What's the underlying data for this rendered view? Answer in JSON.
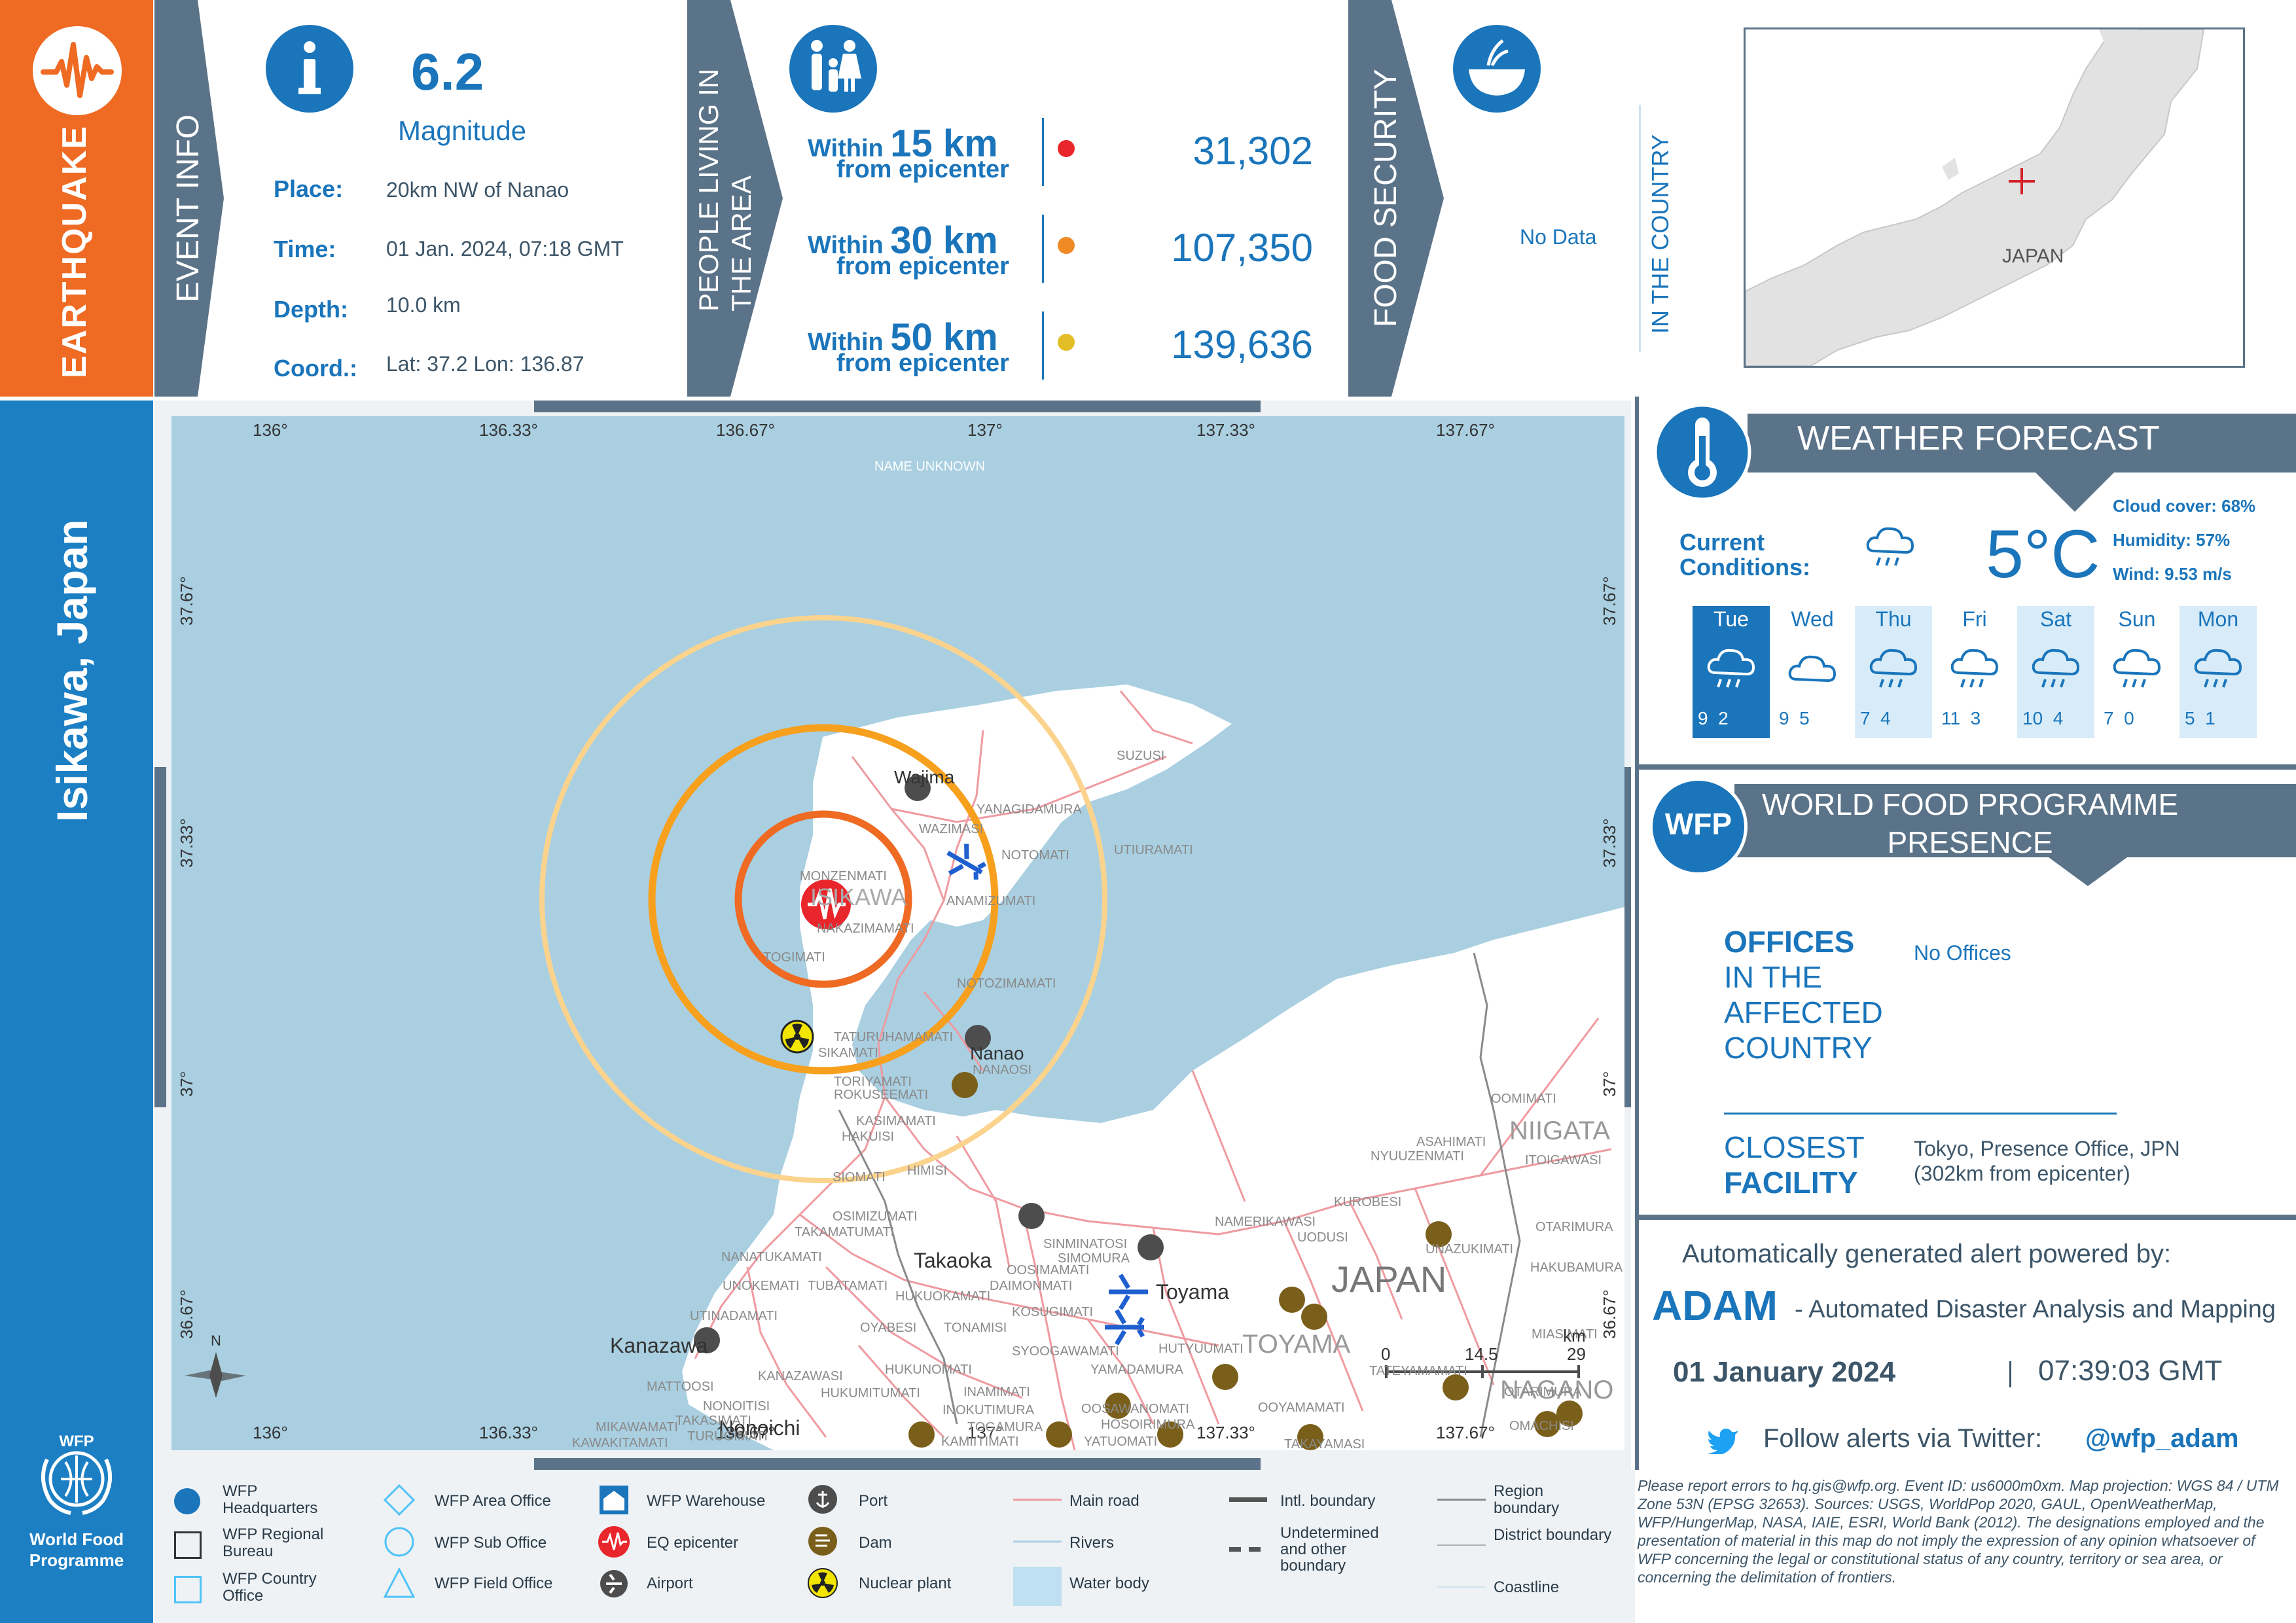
{
  "sidebar": {
    "hazard": "EARTHQUAKE",
    "location": "Isikawa, Japan",
    "logo_line1": "WFP",
    "logo_line2": "World Food",
    "logo_line3": "Programme"
  },
  "event_info": {
    "heading": "EVENT INFO",
    "magnitude_value": "6.2",
    "magnitude_label": "Magnitude",
    "place_label": "Place:",
    "place_value": "20km NW of Nanao",
    "time_label": "Time:",
    "time_value": "01 Jan. 2024, 07:18 GMT",
    "depth_label": "Depth:",
    "depth_value": "10.0 km",
    "coord_label": "Coord.:",
    "coord_value": "Lat: 37.2 Lon: 136.87"
  },
  "population": {
    "heading_line1": "PEOPLE LIVING IN",
    "heading_line2": "THE AREA",
    "rows": [
      {
        "within": "Within",
        "km": "15 km",
        "from": "from epicenter",
        "value": "31,302",
        "color": "#e8262b"
      },
      {
        "within": "Within",
        "km": "30 km",
        "from": "from epicenter",
        "value": "107,350",
        "color": "#f08a24"
      },
      {
        "within": "Within",
        "km": "50 km",
        "from": "from epicenter",
        "value": "139,636",
        "color": "#e3be27"
      }
    ]
  },
  "food": {
    "heading": "FOOD SECURITY",
    "value": "No Data",
    "side_label": "IN THE COUNTRY"
  },
  "inset": {
    "country": "JAPAN"
  },
  "weather": {
    "heading": "WEATHER FORECAST",
    "current_label_1": "Current",
    "current_label_2": "Conditions:",
    "temperature": "5°C",
    "cloud": "Cloud cover: 68%",
    "humidity": "Humidity: 57%",
    "wind": "Wind: 9.53 m/s",
    "days": [
      {
        "day": "Tue",
        "lo": "9",
        "hi": "2"
      },
      {
        "day": "Wed",
        "lo": "9",
        "hi": "5"
      },
      {
        "day": "Thu",
        "lo": "7",
        "hi": "4"
      },
      {
        "day": "Fri",
        "lo": "11",
        "hi": "3"
      },
      {
        "day": "Sat",
        "lo": "10",
        "hi": "4"
      },
      {
        "day": "Sun",
        "lo": "7",
        "hi": "0"
      },
      {
        "day": "Mon",
        "lo": "5",
        "hi": "1"
      }
    ]
  },
  "presence": {
    "badge": "WFP",
    "heading_line1": "WORLD FOOD PROGRAMME",
    "heading_line2": "PRESENCE",
    "offices_1": "OFFICES",
    "offices_2": "IN THE",
    "offices_3": "AFFECTED",
    "offices_4": "COUNTRY",
    "offices_value": "No Offices",
    "closest_1": "CLOSEST",
    "closest_2": "FACILITY",
    "closest_value_1": "Tokyo, Presence Office, JPN",
    "closest_value_2": "(302km from epicenter)"
  },
  "alert": {
    "powered": "Automatically generated alert powered by:",
    "adam": "ADAM",
    "adam_desc": "- Automated Disaster Analysis and Mapping",
    "date": "01 January 2024",
    "time": "07:39:03 GMT",
    "follow": "Follow alerts via Twitter:",
    "handle": "@wfp_adam"
  },
  "map": {
    "top_ticks": [
      "136°",
      "136.33°",
      "136.67°",
      "137°",
      "137.33°",
      "137.67°"
    ],
    "bottom_ticks": [
      "136°",
      "136.33°",
      "136.67°",
      "137°",
      "137.33°",
      "137.67°"
    ],
    "left_ticks": [
      "37.67°",
      "37.33°",
      "37°",
      "36.67°"
    ],
    "right_ticks": [
      "37.67°",
      "37.33°",
      "37°",
      "36.67°"
    ],
    "sea_label": "NAME UNKNOWN",
    "region_label": "ISIKAWA",
    "country_label": "JAPAN",
    "pref_toyama": "TOYAMA",
    "pref_niigata": "NIIGATA",
    "pref_nagano": "NAGANO",
    "cities": [
      "Wajima",
      "Nanao",
      "Takaoka",
      "Toyama",
      "Kanazawa",
      "Nonoichi"
    ],
    "places": [
      "SUZUSI",
      "YANAGIDAMURA",
      "WAZIMASI",
      "NOTOMATI",
      "UTIURAMATI",
      "MONZENMATI",
      "ANAMIZUMATI",
      "NAKAZIMAMATI",
      "TOGIMATI",
      "NOTOZIMAMATI",
      "TATURUHAMAMATI",
      "SIKAMATI",
      "NANAOSI",
      "TORIYAMATI",
      "ROKUSEEMATI",
      "KASIMAMATI",
      "HAKUISI",
      "HIMISI",
      "SIOMATI",
      "OSIMIZUMATI",
      "TAKAMATUMATI",
      "NANATUKAMATI",
      "UNOKEMATI",
      "TUBATAMATI",
      "UTINADAMATI",
      "OOSIMAMATI",
      "DAIMONMATI",
      "SINMINATOSI",
      "SIMOMURA",
      "KOSUGIMATI",
      "NAMERIKAWASI",
      "UODUSI",
      "KUROBESI",
      "ASAHIMATI",
      "NYUUZENMATI",
      "OOMIMATI",
      "ITOIGAWASI",
      "UNAZUKIMATI",
      "OTARIMURA",
      "HAKUBAMURA",
      "HUKUOKAMATI",
      "OYABESI",
      "TONAMISI",
      "SYOOGAWAMATI",
      "YAMADAMURA",
      "HUTYUUMATI",
      "INAMIMATI",
      "HUKUNOMATI",
      "INOKUTIMURA",
      "TOGAMURA",
      "OOSAWANOMATI",
      "HOSOIRIMURA",
      "OOYAMAMATI",
      "YATUOMATI",
      "KANAZAWASI",
      "NONOITISI",
      "HUKUMITUMATI",
      "MATTOOSI",
      "MIKAWAMATI",
      "TURUGIMATI",
      "KAWAKITAMATI",
      "TAKASIMATI",
      "KAMIITIMATI",
      "TATEYAMAMATI",
      "TAKAYAMASI",
      "OTARIMURA",
      "MIASIMATI",
      "OMACHISI"
    ],
    "scale_0": "0",
    "scale_1": "14.5",
    "scale_2": "29",
    "scale_unit": "km",
    "north": "N"
  },
  "legend": {
    "col1": [
      "WFP Headquarters",
      "WFP Regional Bureau",
      "WFP Country Office"
    ],
    "col2": [
      "WFP Area Office",
      "WFP Sub Office",
      "WFP Field Office"
    ],
    "col3": [
      "WFP Warehouse",
      "EQ epicenter",
      "Airport"
    ],
    "col4": [
      "Port",
      "Dam",
      "Nuclear plant"
    ],
    "col5": [
      "Main road",
      "Rivers",
      "Water body"
    ],
    "col6": [
      "Intl. boundary",
      "Undetermined and other boundary"
    ],
    "col7": [
      "Region boundary",
      "District boundary",
      "Coastline"
    ],
    "disclaimer": "Please report errors to hq.gis@wfp.org. Event ID: us6000m0xm. Map projection: WGS 84 / UTM Zone 53N (EPSG 32653). Sources: USGS, WorldPop 2020, GAUL, OpenWeatherMap, WFP/HungerMap, NASA, IAIE, ESRI, World Bank (2012). The designations employed and the presentation of material in this map do not imply the expression of any opinion whatsoever of WFP concerning the legal or constitutional status of any country, territory or sea area, or concerning the delimitation of frontiers."
  }
}
